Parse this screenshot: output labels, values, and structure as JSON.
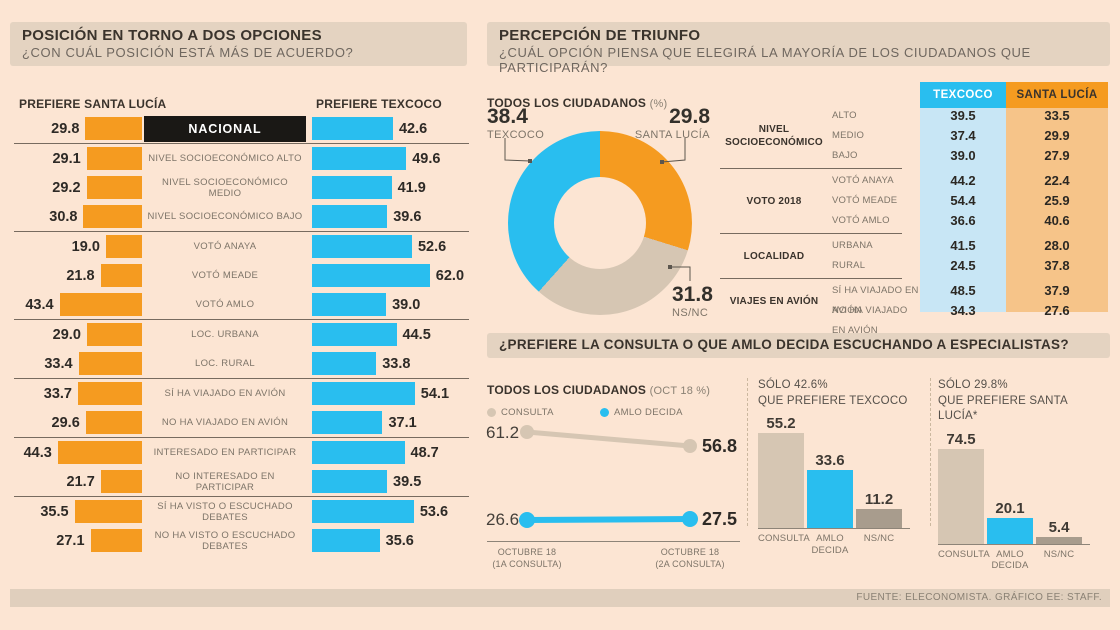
{
  "header1": {
    "title": "POSICIÓN EN TORNO A DOS OPCIONES",
    "subtitle": "¿CON CUÁL POSICIÓN ESTÁ MÁS DE ACUERDO?"
  },
  "header2": {
    "title": "PERCEPCIÓN DE TRIUNFO",
    "subtitle": "¿CUÁL OPCIÓN PIENSA QUE ELEGIRÁ LA MAYORÍA DE LOS CIUDADANOS QUE PARTICIPARÁN?"
  },
  "header3": {
    "title": "¿PREFIERE LA CONSULTA O QUE AMLO DECIDA ESCUCHANDO A ESPECIALISTAS?"
  },
  "footer": {
    "source": "FUENTE: ELECONOMISTA. GRÁFICO EE: STAFF."
  },
  "colors": {
    "bg": "#FCE5D3",
    "strip": "#E4D3C1",
    "orange": "#F59B20",
    "blue": "#29BEEF",
    "tan": "#D6C6B3",
    "nsnc_gray": "#A89C8D",
    "black_box": "#1A1815",
    "table_blue_bg": "#C8E6F5",
    "table_orange_bg": "#F6C489"
  },
  "chart_data": [
    {
      "type": "bar",
      "subtype": "diverging-horizontal",
      "header_left": "PREFIERE SANTA LUCÍA",
      "header_right": "PREFIERE TEXCOCO",
      "groups": [
        [
          {
            "label": "NACIONAL",
            "santa_lucia": 29.8,
            "texcoco": 42.6,
            "highlight": true
          }
        ],
        [
          {
            "label": "NIVEL SOCIOECONÓMICO ALTO",
            "santa_lucia": 29.1,
            "texcoco": 49.6
          },
          {
            "label": "NIVEL SOCIOECONÓMICO MEDIO",
            "santa_lucia": 29.2,
            "texcoco": 41.9
          },
          {
            "label": "NIVEL SOCIOECONÓMICO BAJO",
            "santa_lucia": 30.8,
            "texcoco": 39.6
          }
        ],
        [
          {
            "label": "VOTÓ ANAYA",
            "santa_lucia": 19.0,
            "texcoco": 52.6
          },
          {
            "label": "VOTÓ MEADE",
            "santa_lucia": 21.8,
            "texcoco": 62.0
          },
          {
            "label": "VOTÓ AMLO",
            "santa_lucia": 43.4,
            "texcoco": 39.0
          }
        ],
        [
          {
            "label": "LOC. URBANA",
            "santa_lucia": 29.0,
            "texcoco": 44.5
          },
          {
            "label": "LOC. RURAL",
            "santa_lucia": 33.4,
            "texcoco": 33.8
          }
        ],
        [
          {
            "label": "SÍ HA VIAJADO EN AVIÓN",
            "santa_lucia": 33.7,
            "texcoco": 54.1
          },
          {
            "label": "NO HA VIAJADO EN AVIÓN",
            "santa_lucia": 29.6,
            "texcoco": 37.1
          }
        ],
        [
          {
            "label": "INTERESADO EN PARTICIPAR",
            "santa_lucia": 44.3,
            "texcoco": 48.7
          },
          {
            "label": "NO INTERESADO EN PARTICIPAR",
            "santa_lucia": 21.7,
            "texcoco": 39.5
          }
        ],
        [
          {
            "label": "SÍ HA VISTO O ESCUCHADO DEBATES",
            "santa_lucia": 35.5,
            "texcoco": 53.6
          },
          {
            "label": "NO HA VISTO O ESCUCHADO DEBATES",
            "santa_lucia": 27.1,
            "texcoco": 35.6
          }
        ]
      ]
    },
    {
      "type": "pie",
      "subtype": "donut",
      "heading": "TODOS LOS CIUDADANOS",
      "heading_unit": "(%)",
      "slices_clockwise": [
        {
          "label": "SANTA LUCÍA",
          "value": 29.8,
          "color": "orange"
        },
        {
          "label": "NS/NC",
          "value": 31.8,
          "color": "tan"
        },
        {
          "label": "TEXCOCO",
          "value": 38.4,
          "color": "blue"
        }
      ]
    },
    {
      "type": "table",
      "col_headers": [
        "TEXCOCO",
        "SANTA LUCÍA"
      ],
      "groups": [
        {
          "name": "NIVEL SOCIOECONÓMICO",
          "rows": [
            {
              "label": "ALTO",
              "texcoco": 39.5,
              "santa_lucia": 33.5
            },
            {
              "label": "MEDIO",
              "texcoco": 37.4,
              "santa_lucia": 29.9
            },
            {
              "label": "BAJO",
              "texcoco": 39.0,
              "santa_lucia": 27.9
            }
          ]
        },
        {
          "name": "VOTO 2018",
          "rows": [
            {
              "label": "VOTÓ ANAYA",
              "texcoco": 44.2,
              "santa_lucia": 22.4
            },
            {
              "label": "VOTÓ MEADE",
              "texcoco": 54.4,
              "santa_lucia": 25.9
            },
            {
              "label": "VOTÓ AMLO",
              "texcoco": 36.6,
              "santa_lucia": 40.6
            }
          ]
        },
        {
          "name": "LOCALIDAD",
          "rows": [
            {
              "label": "URBANA",
              "texcoco": 41.5,
              "santa_lucia": 28.0
            },
            {
              "label": "RURAL",
              "texcoco": 24.5,
              "santa_lucia": 37.8
            }
          ]
        },
        {
          "name": "VIAJES EN AVIÓN",
          "rows": [
            {
              "label": "SÍ HA VIAJADO EN AVIÓN",
              "texcoco": 48.5,
              "santa_lucia": 37.9
            },
            {
              "label": "NO HA VIAJADO EN AVIÓN",
              "texcoco": 34.3,
              "santa_lucia": 27.6
            }
          ]
        }
      ]
    },
    {
      "type": "line",
      "subtype": "slope",
      "heading": "TODOS LOS CIUDADANOS",
      "heading_unit": "(OCT 18 %)",
      "legend": [
        "CONSULTA",
        "AMLO DECIDA"
      ],
      "series": [
        {
          "name": "CONSULTA",
          "from": 61.2,
          "to": 56.8
        },
        {
          "name": "AMLO DECIDA",
          "from": 26.6,
          "to": 27.5
        }
      ],
      "x_labels": [
        {
          "line1": "OCTUBRE 18",
          "line2": "(1A CONSULTA)"
        },
        {
          "line1": "OCTUBRE 18",
          "line2": "(2A CONSULTA)"
        }
      ]
    },
    {
      "type": "bar",
      "title_line1": "SÓLO 42.6%",
      "title_line2": "QUE PREFIERE TEXCOCO",
      "categories": [
        "CONSULTA",
        "AMLO DECIDA",
        "NS/NC"
      ],
      "values": [
        55.2,
        33.6,
        11.2
      ],
      "bar_colors": [
        "tan",
        "blue",
        "nsnc_gray"
      ]
    },
    {
      "type": "bar",
      "title_line1": "SÓLO 29.8%",
      "title_line2": "QUE PREFIERE SANTA LUCÍA*",
      "categories": [
        "CONSULTA",
        "AMLO DECIDA",
        "NS/NC"
      ],
      "values": [
        74.5,
        20.1,
        5.4
      ],
      "bar_colors": [
        "tan",
        "blue",
        "nsnc_gray"
      ]
    }
  ]
}
